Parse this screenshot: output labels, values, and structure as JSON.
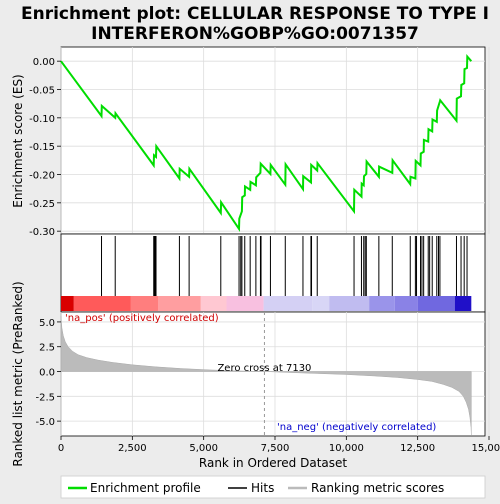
{
  "chart_data": {
    "type": "line",
    "title": "Enrichment plot: CELLULAR RESPONSE TO TYPE I INTERFERON%GOBP%GO:0071357",
    "title_lines": [
      "Enrichment plot: CELLULAR RESPONSE TO TYPE I",
      "INTERFERON%GOBP%GO:0071357"
    ],
    "xlabel": "Rank in Ordered Dataset",
    "xlim": [
      0,
      15000
    ],
    "x_ticks": [
      0,
      2500,
      5000,
      7500,
      10000,
      12500,
      15000
    ],
    "x_tick_labels": [
      "0",
      "2,500",
      "5,000",
      "7,500",
      "10,000",
      "12,500",
      "15,000"
    ],
    "es_panel": {
      "ylabel": "Enrichment score (ES)",
      "ylim": [
        -0.305,
        0.025
      ],
      "y_ticks": [
        0.0,
        -0.05,
        -0.1,
        -0.15,
        -0.2,
        -0.25,
        -0.3
      ],
      "y_tick_labels": [
        "0.00",
        "-0.05",
        "-0.10",
        "-0.15",
        "-0.20",
        "-0.25",
        "-0.30"
      ],
      "color": "#00dd00",
      "series": [
        {
          "name": "Enrichment profile",
          "x": [
            0,
            1420,
            1430,
            1900,
            1910,
            3250,
            3260,
            3330,
            3340,
            4150,
            4160,
            4490,
            4500,
            5600,
            5610,
            6240,
            6250,
            6340,
            6350,
            6440,
            6450,
            6630,
            6640,
            6830,
            6840,
            6990,
            7000,
            7340,
            7350,
            7860,
            7870,
            8480,
            8490,
            8760,
            8770,
            8980,
            8990,
            10270,
            10280,
            10530,
            10540,
            10610,
            10620,
            10700,
            10710,
            11140,
            11150,
            11610,
            11620,
            12240,
            12250,
            12420,
            12430,
            12600,
            12610,
            12710,
            12720,
            12870,
            12880,
            13010,
            13020,
            13170,
            13180,
            13280,
            13290,
            13860,
            13870,
            14020,
            14030,
            14130,
            14140,
            14230,
            14240,
            14380
          ],
          "y": [
            0.0,
            -0.097,
            -0.079,
            -0.1,
            -0.092,
            -0.184,
            -0.166,
            -0.169,
            -0.15,
            -0.207,
            -0.19,
            -0.204,
            -0.19,
            -0.268,
            -0.249,
            -0.296,
            -0.278,
            -0.265,
            -0.24,
            -0.237,
            -0.221,
            -0.227,
            -0.213,
            -0.219,
            -0.205,
            -0.197,
            -0.181,
            -0.199,
            -0.183,
            -0.218,
            -0.182,
            -0.226,
            -0.203,
            -0.214,
            -0.183,
            -0.193,
            -0.18,
            -0.265,
            -0.227,
            -0.239,
            -0.216,
            -0.219,
            -0.203,
            -0.199,
            -0.177,
            -0.204,
            -0.186,
            -0.197,
            -0.175,
            -0.217,
            -0.204,
            -0.207,
            -0.176,
            -0.184,
            -0.163,
            -0.16,
            -0.139,
            -0.142,
            -0.12,
            -0.124,
            -0.103,
            -0.107,
            -0.087,
            -0.071,
            -0.069,
            -0.105,
            -0.066,
            -0.062,
            -0.042,
            -0.039,
            -0.014,
            -0.012,
            0.008,
            0.0
          ]
        }
      ]
    },
    "hits": {
      "name": "Hits",
      "positions": [
        1420,
        1900,
        3250,
        3270,
        3290,
        3310,
        3330,
        4150,
        4490,
        5600,
        6240,
        6300,
        6340,
        6440,
        6630,
        6830,
        6990,
        7010,
        7340,
        7860,
        8480,
        8760,
        8780,
        8980,
        10270,
        10530,
        10610,
        10660,
        10700,
        11140,
        11610,
        12240,
        12420,
        12460,
        12600,
        12650,
        12710,
        12870,
        12920,
        13010,
        13170,
        13230,
        13280,
        13860,
        14020,
        14130,
        14230
      ]
    },
    "rank_bar": {
      "segments": [
        {
          "x0": 0,
          "x1": 450,
          "color": "#d90000"
        },
        {
          "x0": 450,
          "x1": 2450,
          "color": "#ff5a5a"
        },
        {
          "x0": 2450,
          "x1": 3400,
          "color": "#ff7e7e"
        },
        {
          "x0": 3400,
          "x1": 4900,
          "color": "#ff9ea0"
        },
        {
          "x0": 4900,
          "x1": 5800,
          "color": "#ffc8d2"
        },
        {
          "x0": 5800,
          "x1": 7100,
          "color": "#f8c0e0"
        },
        {
          "x0": 7100,
          "x1": 8800,
          "color": "#d4d0f4"
        },
        {
          "x0": 8800,
          "x1": 9400,
          "color": "#d8d6f6"
        },
        {
          "x0": 9400,
          "x1": 10800,
          "color": "#c0bcf0"
        },
        {
          "x0": 10800,
          "x1": 11700,
          "color": "#9a94ea"
        },
        {
          "x0": 11700,
          "x1": 12500,
          "color": "#8a82e6"
        },
        {
          "x0": 12500,
          "x1": 13800,
          "color": "#7068e0"
        },
        {
          "x0": 13800,
          "x1": 14380,
          "color": "#2010c8"
        }
      ]
    },
    "metric_panel": {
      "ylabel": "Ranked list metric (PreRanked)",
      "ylim": [
        -6.5,
        6.0
      ],
      "y_ticks": [
        5.0,
        2.5,
        0.0,
        -2.5,
        -5.0
      ],
      "y_tick_labels": [
        "5.0",
        "2.5",
        "0.0",
        "-2.5",
        "-5.0"
      ],
      "fill_color": "#bbbbbb",
      "zero_cross_rank": 7130,
      "zero_cross_label": "Zero cross at 7130",
      "pos_label": "'na_pos' (positively correlated)",
      "neg_label": "'na_neg' (negatively correlated)",
      "pos_label_color": "#d00000",
      "neg_label_color": "#0000cc",
      "series": {
        "x": [
          0,
          30,
          80,
          150,
          250,
          400,
          600,
          900,
          1300,
          1800,
          2500,
          3300,
          4200,
          5200,
          6200,
          7130,
          8000,
          9000,
          10000,
          11000,
          11800,
          12500,
          13000,
          13400,
          13700,
          13950,
          14100,
          14200,
          14280,
          14330,
          14370,
          14380
        ],
        "y": [
          5.6,
          4.4,
          3.6,
          3.0,
          2.5,
          2.05,
          1.7,
          1.4,
          1.15,
          0.92,
          0.68,
          0.48,
          0.3,
          0.16,
          0.06,
          0.0,
          -0.1,
          -0.2,
          -0.3,
          -0.45,
          -0.6,
          -0.8,
          -1.0,
          -1.3,
          -1.6,
          -2.0,
          -2.5,
          -3.1,
          -3.8,
          -4.6,
          -5.6,
          -6.4
        ]
      }
    },
    "legend": {
      "placement": "bottom",
      "entries": [
        {
          "label": "Enrichment profile",
          "color": "#00dd00"
        },
        {
          "label": "Hits",
          "color": "#000000"
        },
        {
          "label": "Ranking metric scores",
          "color": "#bbbbbb"
        }
      ]
    }
  }
}
